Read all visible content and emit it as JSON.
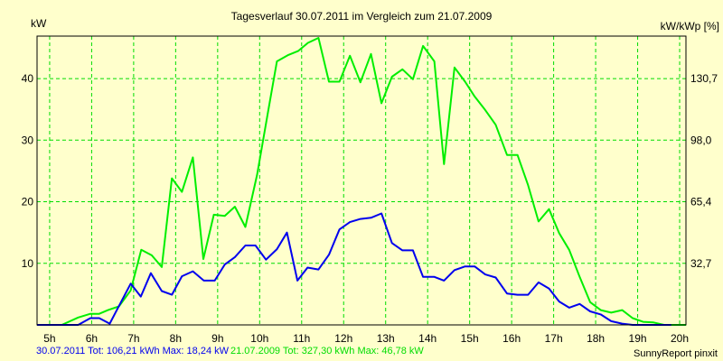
{
  "chart_data": {
    "type": "line",
    "title": "Tagesverlauf 30.07.2011 im Vergleich zum 21.07.2009",
    "ylabel_left": "kW",
    "ylabel_right": "kW/kWp [%]",
    "xlim": [
      4.7,
      20.15
    ],
    "ylim": [
      0,
      46.9
    ],
    "grid": true,
    "x_ticks": [
      5,
      6,
      7,
      8,
      9,
      10,
      11,
      12,
      13,
      14,
      15,
      16,
      17,
      18,
      19,
      20
    ],
    "x_tick_labels": [
      "5h",
      "6h",
      "7h",
      "8h",
      "9h",
      "10h",
      "11h",
      "12h",
      "13h",
      "14h",
      "15h",
      "16h",
      "17h",
      "18h",
      "19h",
      "20h"
    ],
    "y_ticks_left": [
      10,
      20,
      30,
      40
    ],
    "y_tick_labels_left": [
      "10",
      "20",
      "30",
      "40"
    ],
    "y_tick_labels_right": [
      "32,7",
      "65,4",
      "98,0",
      "130,7"
    ],
    "series": [
      {
        "name": "21.07.2009",
        "color": "#00EE00",
        "x": [
          4.7,
          5.29,
          5.68,
          5.97,
          6.18,
          6.39,
          6.65,
          6.93,
          7.18,
          7.43,
          7.67,
          7.91,
          8.15,
          8.41,
          8.66,
          8.91,
          9.17,
          9.41,
          9.66,
          9.94,
          10.19,
          10.41,
          10.67,
          10.92,
          11.15,
          11.4,
          11.65,
          11.9,
          12.15,
          12.4,
          12.65,
          12.9,
          13.15,
          13.4,
          13.65,
          13.89,
          14.16,
          14.39,
          14.64,
          14.89,
          15.12,
          15.37,
          15.62,
          15.89,
          16.14,
          16.39,
          16.64,
          16.89,
          17.13,
          17.37,
          17.62,
          17.87,
          18.12,
          18.37,
          18.63,
          18.88,
          19.13,
          19.38,
          19.63,
          20.15
        ],
        "y": [
          0,
          0,
          1.2,
          1.8,
          1.8,
          2.4,
          3.0,
          5.6,
          12.2,
          11.3,
          9.4,
          23.8,
          21.6,
          27.2,
          10.7,
          17.9,
          17.7,
          19.2,
          15.9,
          24.4,
          34.2,
          42.8,
          43.8,
          44.5,
          45.8,
          46.6,
          39.5,
          39.5,
          43.7,
          39.4,
          44.0,
          36.0,
          40.3,
          41.5,
          39.9,
          45.3,
          42.8,
          26.1,
          41.8,
          39.5,
          37.1,
          34.9,
          32.5,
          27.6,
          27.6,
          22.7,
          16.8,
          18.8,
          14.9,
          12.2,
          7.8,
          3.7,
          2.4,
          2.0,
          2.4,
          1.1,
          0.5,
          0.4,
          0,
          0
        ]
      },
      {
        "name": "30.07.2011",
        "color": "#0000EE",
        "x": [
          4.7,
          5.68,
          5.97,
          6.18,
          6.43,
          6.93,
          7.17,
          7.41,
          7.67,
          7.91,
          8.15,
          8.41,
          8.67,
          8.93,
          9.17,
          9.41,
          9.66,
          9.9,
          10.15,
          10.41,
          10.65,
          10.9,
          11.14,
          11.4,
          11.65,
          11.9,
          12.15,
          12.4,
          12.65,
          12.9,
          13.15,
          13.4,
          13.65,
          13.89,
          14.16,
          14.39,
          14.64,
          14.89,
          15.12,
          15.37,
          15.62,
          15.89,
          16.14,
          16.39,
          16.64,
          16.89,
          17.13,
          17.37,
          17.62,
          17.87,
          18.12,
          18.37,
          18.63,
          18.88,
          19.8
        ],
        "y": [
          0,
          0,
          1.1,
          1.1,
          0.2,
          6.7,
          4.6,
          8.4,
          5.5,
          4.9,
          7.9,
          8.7,
          7.2,
          7.2,
          9.8,
          11.0,
          12.9,
          12.9,
          10.6,
          12.3,
          15.0,
          7.2,
          9.3,
          9.0,
          11.4,
          15.5,
          16.7,
          17.2,
          17.4,
          18.1,
          13.3,
          12.1,
          12.1,
          7.8,
          7.8,
          7.2,
          8.9,
          9.5,
          9.5,
          8.2,
          7.7,
          5.1,
          4.9,
          4.9,
          6.9,
          5.9,
          3.8,
          2.8,
          3.4,
          2.2,
          1.7,
          0.6,
          0.2,
          0,
          0
        ]
      }
    ]
  },
  "footer": {
    "blue_summary": "30.07.2011 Tot: 106,21 kWh Max: 18,24 kW",
    "green_summary": "21.07.2009 Tot: 327,30 kWh Max: 46,78 kW",
    "credit": "SunnyReport pinxit"
  }
}
